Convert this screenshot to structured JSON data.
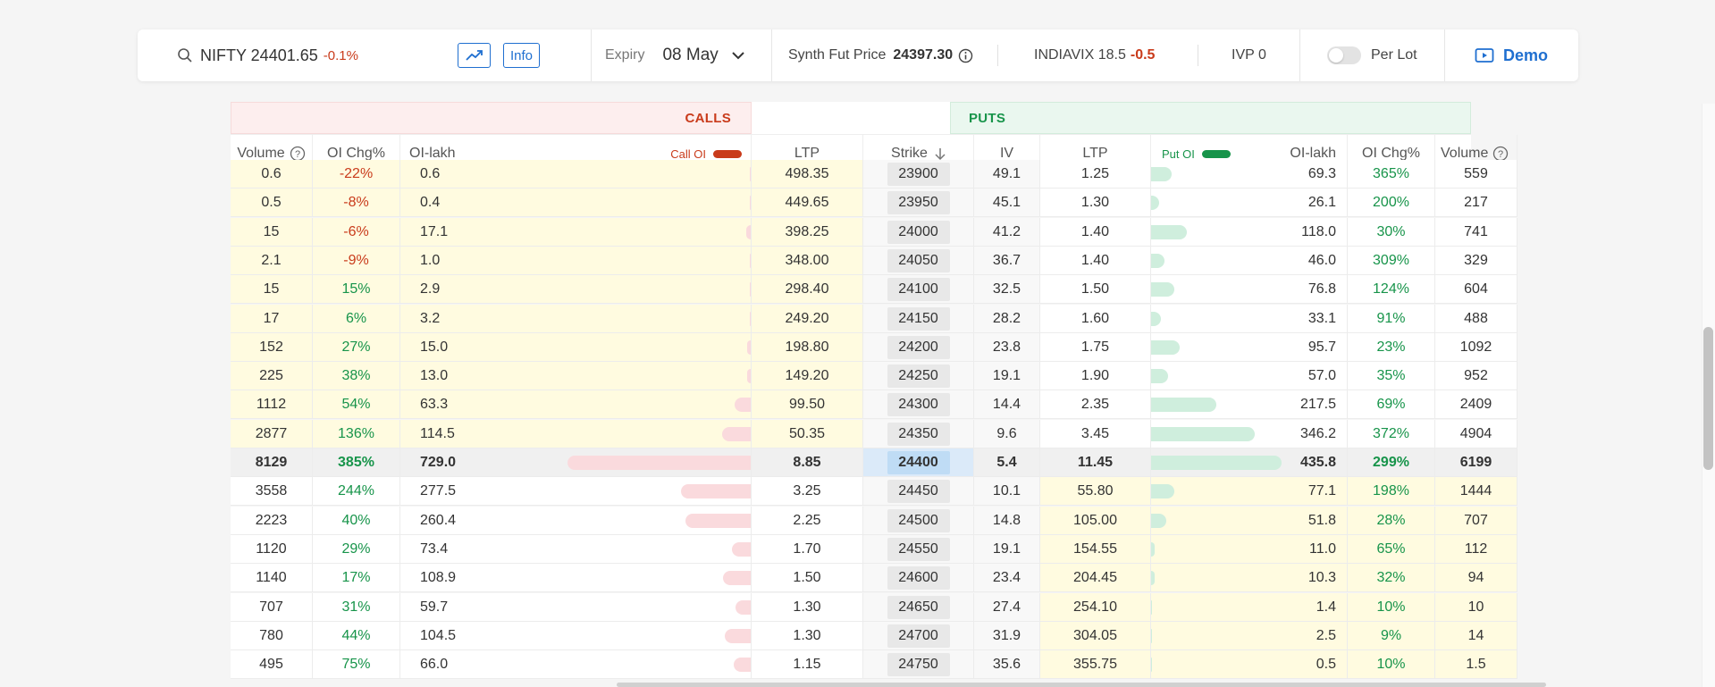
{
  "topbar": {
    "symbol": "NIFTY 24401.65",
    "change": "-0.1%",
    "info_label": "Info",
    "expiry_label": "Expiry",
    "expiry_value": "08 May",
    "synth_label": "Synth Fut Price",
    "synth_value": "24397.30",
    "vix_label": "INDIAVIX 18.5",
    "vix_change": "-0.5",
    "ivp": "IVP 0",
    "per_lot_label": "Per Lot",
    "demo_label": "Demo"
  },
  "chain": {
    "calls_label": "CALLS",
    "puts_label": "PUTS",
    "headers": {
      "volume": "Volume",
      "oi_chg": "OI Chg%",
      "oi_lakh": "OI-lakh",
      "call_oi": "Call OI",
      "ltp": "LTP",
      "strike": "Strike",
      "iv": "IV",
      "put_oi": "Put OI"
    },
    "rows": [
      {
        "c_vol": "0.6",
        "c_chg": "-22%",
        "c_oi": "0.6",
        "c_ltp": "498.35",
        "strike": "23900",
        "iv": "49.1",
        "p_ltp": "1.25",
        "p_oi": "69.3",
        "p_chg": "365%",
        "p_vol": "559",
        "c_bar": 0.001,
        "p_bar": 0.159
      },
      {
        "c_vol": "0.5",
        "c_chg": "-8%",
        "c_oi": "0.4",
        "c_ltp": "449.65",
        "strike": "23950",
        "iv": "45.1",
        "p_ltp": "1.30",
        "p_oi": "26.1",
        "p_chg": "200%",
        "p_vol": "217",
        "c_bar": 0.001,
        "p_bar": 0.06
      },
      {
        "c_vol": "15",
        "c_chg": "-6%",
        "c_oi": "17.1",
        "c_ltp": "398.25",
        "strike": "24000",
        "iv": "41.2",
        "p_ltp": "1.40",
        "p_oi": "118.0",
        "p_chg": "30%",
        "p_vol": "741",
        "c_bar": 0.023,
        "p_bar": 0.271
      },
      {
        "c_vol": "2.1",
        "c_chg": "-9%",
        "c_oi": "1.0",
        "c_ltp": "348.00",
        "strike": "24050",
        "iv": "36.7",
        "p_ltp": "1.40",
        "p_oi": "46.0",
        "p_chg": "309%",
        "p_vol": "329",
        "c_bar": 0.001,
        "p_bar": 0.106
      },
      {
        "c_vol": "15",
        "c_chg": "15%",
        "c_oi": "2.9",
        "c_ltp": "298.40",
        "strike": "24100",
        "iv": "32.5",
        "p_ltp": "1.50",
        "p_oi": "76.8",
        "p_chg": "124%",
        "p_vol": "604",
        "c_bar": 0.004,
        "p_bar": 0.176
      },
      {
        "c_vol": "17",
        "c_chg": "6%",
        "c_oi": "3.2",
        "c_ltp": "249.20",
        "strike": "24150",
        "iv": "28.2",
        "p_ltp": "1.60",
        "p_oi": "33.1",
        "p_chg": "91%",
        "p_vol": "488",
        "c_bar": 0.004,
        "p_bar": 0.076
      },
      {
        "c_vol": "152",
        "c_chg": "27%",
        "c_oi": "15.0",
        "c_ltp": "198.80",
        "strike": "24200",
        "iv": "23.8",
        "p_ltp": "1.75",
        "p_oi": "95.7",
        "p_chg": "23%",
        "p_vol": "1092",
        "c_bar": 0.021,
        "p_bar": 0.22
      },
      {
        "c_vol": "225",
        "c_chg": "38%",
        "c_oi": "13.0",
        "c_ltp": "149.20",
        "strike": "24250",
        "iv": "19.1",
        "p_ltp": "1.90",
        "p_oi": "57.0",
        "p_chg": "35%",
        "p_vol": "952",
        "c_bar": 0.018,
        "p_bar": 0.131
      },
      {
        "c_vol": "1112",
        "c_chg": "54%",
        "c_oi": "63.3",
        "c_ltp": "99.50",
        "strike": "24300",
        "iv": "14.4",
        "p_ltp": "2.35",
        "p_oi": "217.5",
        "p_chg": "69%",
        "p_vol": "2409",
        "c_bar": 0.087,
        "p_bar": 0.499
      },
      {
        "c_vol": "2877",
        "c_chg": "136%",
        "c_oi": "114.5",
        "c_ltp": "50.35",
        "strike": "24350",
        "iv": "9.6",
        "p_ltp": "3.45",
        "p_oi": "346.2",
        "p_chg": "372%",
        "p_vol": "4904",
        "c_bar": 0.157,
        "p_bar": 0.794
      },
      {
        "c_vol": "8129",
        "c_chg": "385%",
        "c_oi": "729.0",
        "c_ltp": "8.85",
        "strike": "24400",
        "iv": "5.4",
        "p_ltp": "11.45",
        "p_oi": "435.8",
        "p_chg": "299%",
        "p_vol": "6199",
        "c_bar": 1.0,
        "p_bar": 1.0,
        "atm": true
      },
      {
        "c_vol": "3558",
        "c_chg": "244%",
        "c_oi": "277.5",
        "c_ltp": "3.25",
        "strike": "24450",
        "iv": "10.1",
        "p_ltp": "55.80",
        "p_oi": "77.1",
        "p_chg": "198%",
        "p_vol": "1444",
        "c_bar": 0.381,
        "p_bar": 0.177
      },
      {
        "c_vol": "2223",
        "c_chg": "40%",
        "c_oi": "260.4",
        "c_ltp": "2.25",
        "strike": "24500",
        "iv": "14.8",
        "p_ltp": "105.00",
        "p_oi": "51.8",
        "p_chg": "28%",
        "p_vol": "707",
        "c_bar": 0.357,
        "p_bar": 0.119
      },
      {
        "c_vol": "1120",
        "c_chg": "29%",
        "c_oi": "73.4",
        "c_ltp": "1.70",
        "strike": "24550",
        "iv": "19.1",
        "p_ltp": "154.55",
        "p_oi": "11.0",
        "p_chg": "65%",
        "p_vol": "112",
        "c_bar": 0.101,
        "p_bar": 0.025
      },
      {
        "c_vol": "1140",
        "c_chg": "17%",
        "c_oi": "108.9",
        "c_ltp": "1.50",
        "strike": "24600",
        "iv": "23.4",
        "p_ltp": "204.45",
        "p_oi": "10.3",
        "p_chg": "32%",
        "p_vol": "94",
        "c_bar": 0.149,
        "p_bar": 0.024
      },
      {
        "c_vol": "707",
        "c_chg": "31%",
        "c_oi": "59.7",
        "c_ltp": "1.30",
        "strike": "24650",
        "iv": "27.4",
        "p_ltp": "254.10",
        "p_oi": "1.4",
        "p_chg": "10%",
        "p_vol": "10",
        "c_bar": 0.082,
        "p_bar": 0.003
      },
      {
        "c_vol": "780",
        "c_chg": "44%",
        "c_oi": "104.5",
        "c_ltp": "1.30",
        "strike": "24700",
        "iv": "31.9",
        "p_ltp": "304.05",
        "p_oi": "2.5",
        "p_chg": "9%",
        "p_vol": "14",
        "c_bar": 0.143,
        "p_bar": 0.006
      },
      {
        "c_vol": "495",
        "c_chg": "75%",
        "c_oi": "66.0",
        "c_ltp": "1.15",
        "strike": "24750",
        "iv": "35.6",
        "p_ltp": "355.75",
        "p_oi": "0.5",
        "p_chg": "10%",
        "p_vol": "1.5",
        "c_bar": 0.091,
        "p_bar": 0.001
      }
    ]
  }
}
